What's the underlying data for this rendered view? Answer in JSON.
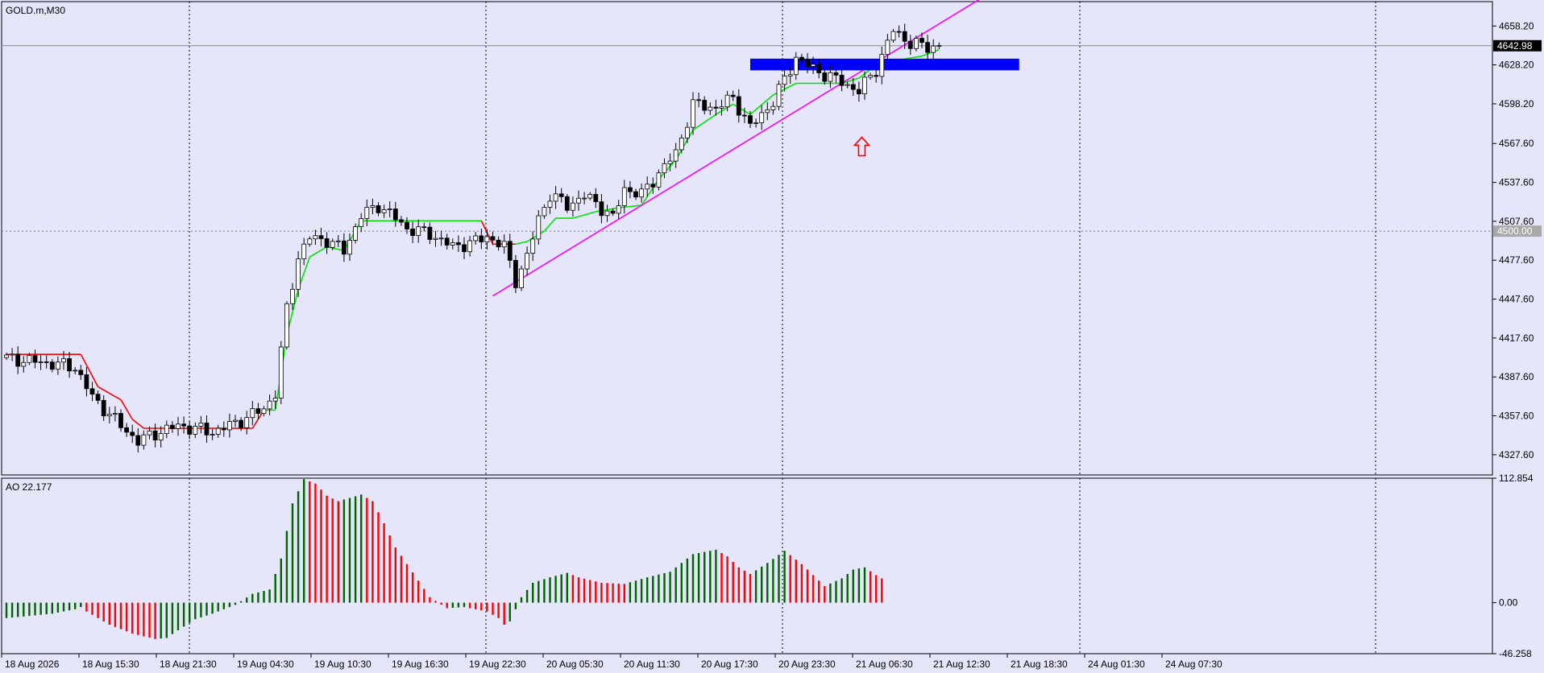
{
  "chart_data": [
    {
      "type": "candlestick",
      "title": "GOLD.m,M30",
      "ylim": [
        4312,
        4677
      ],
      "y_ticks": [
        "4658.20",
        "4628.20",
        "4598.20",
        "4567.60",
        "4537.60",
        "4507.60",
        "4477.60",
        "4447.60",
        "4417.60",
        "4387.60",
        "4357.60",
        "4327.60"
      ],
      "x_ticks": [
        "18 Aug 2026",
        "18 Aug 15:30",
        "18 Aug 21:30",
        "19 Aug 04:30",
        "19 Aug 10:30",
        "19 Aug 16:30",
        "19 Aug 22:30",
        "20 Aug 05:30",
        "20 Aug 11:30",
        "20 Aug 17:30",
        "20 Aug 23:30",
        "21 Aug 06:30",
        "21 Aug 12:30",
        "21 Aug 18:30",
        "24 Aug 01:30",
        "24 Aug 07:30"
      ],
      "current_price": "4642.98",
      "level_price": "4500.00",
      "anchors": [
        [
          0,
          4402
        ],
        [
          8,
          4398
        ],
        [
          12,
          4395
        ],
        [
          15,
          4372
        ],
        [
          20,
          4350
        ],
        [
          23,
          4338
        ],
        [
          26,
          4344
        ],
        [
          30,
          4350
        ],
        [
          34,
          4347
        ],
        [
          36,
          4345
        ],
        [
          40,
          4352
        ],
        [
          45,
          4363
        ],
        [
          47,
          4375
        ],
        [
          49,
          4440
        ],
        [
          51,
          4480
        ],
        [
          53,
          4495
        ],
        [
          56,
          4493
        ],
        [
          59,
          4485
        ],
        [
          62,
          4512
        ],
        [
          65,
          4520
        ],
        [
          68,
          4510
        ],
        [
          70,
          4502
        ],
        [
          74,
          4498
        ],
        [
          78,
          4488
        ],
        [
          82,
          4492
        ],
        [
          84,
          4496
        ],
        [
          87,
          4488
        ],
        [
          89,
          4462
        ],
        [
          91,
          4480
        ],
        [
          93,
          4510
        ],
        [
          95,
          4528
        ],
        [
          98,
          4520
        ],
        [
          101,
          4527
        ],
        [
          103,
          4522
        ],
        [
          106,
          4510
        ],
        [
          108,
          4533
        ],
        [
          111,
          4528
        ],
        [
          114,
          4545
        ],
        [
          117,
          4560
        ],
        [
          120,
          4598
        ],
        [
          124,
          4595
        ],
        [
          127,
          4603
        ],
        [
          130,
          4580
        ],
        [
          134,
          4600
        ],
        [
          138,
          4634
        ],
        [
          141,
          4625
        ],
        [
          146,
          4615
        ],
        [
          149,
          4608
        ],
        [
          152,
          4625
        ],
        [
          155,
          4655
        ],
        [
          158,
          4645
        ],
        [
          161,
          4642
        ],
        [
          163,
          4643
        ]
      ],
      "candle_colors": {
        "up": "#ffffff",
        "down": "#000000",
        "wick": "#000000"
      },
      "supertrend": {
        "up_color": "#00e600",
        "down_color": "#ff0000",
        "points": [
          [
            0,
            4405
          ],
          [
            13,
            4405
          ],
          [
            16,
            4380
          ],
          [
            20,
            4370
          ],
          [
            22,
            4355
          ],
          [
            24,
            4348
          ],
          [
            43,
            4348
          ],
          [
            45,
            4362
          ],
          [
            47,
            4362
          ],
          [
            49,
            4420
          ],
          [
            51,
            4455
          ],
          [
            53,
            4480
          ],
          [
            56,
            4488
          ],
          [
            59,
            4485
          ],
          [
            62,
            4508
          ],
          [
            64,
            4508
          ],
          [
            83,
            4508
          ],
          [
            85,
            4490
          ],
          [
            89,
            4490
          ],
          [
            91,
            4492
          ],
          [
            94,
            4500
          ],
          [
            96,
            4510
          ],
          [
            99,
            4510
          ],
          [
            103,
            4515
          ],
          [
            107,
            4518
          ],
          [
            111,
            4520
          ],
          [
            114,
            4540
          ],
          [
            117,
            4555
          ],
          [
            120,
            4578
          ],
          [
            124,
            4590
          ],
          [
            127,
            4598
          ],
          [
            130,
            4590
          ],
          [
            134,
            4605
          ],
          [
            138,
            4614
          ],
          [
            141,
            4614
          ],
          [
            146,
            4614
          ],
          [
            149,
            4618
          ],
          [
            152,
            4628
          ],
          [
            156,
            4632
          ],
          [
            160,
            4635
          ],
          [
            163,
            4640
          ]
        ]
      },
      "trendline": {
        "color": "#ff00ff",
        "from": [
          85,
          4450
        ],
        "to": [
          172,
          4684
        ]
      },
      "zone": {
        "color": "#0000ff",
        "from_index": 130,
        "to_index": 177,
        "top": 4633,
        "bottom": 4624
      },
      "arrow": {
        "color": "#ff0000",
        "index": 149.5,
        "price": 4565
      }
    },
    {
      "type": "bar",
      "title": "AO 22.177",
      "ylim": [
        -46.258,
        112.854
      ],
      "y_ticks": [
        "112.854",
        "0.00",
        "-46.258"
      ],
      "up_color": "#006400",
      "down_color": "#ff0000",
      "anchors": [
        [
          0,
          -14
        ],
        [
          4,
          -12
        ],
        [
          8,
          -10
        ],
        [
          12,
          -6
        ],
        [
          13,
          -4
        ],
        [
          14,
          -8
        ],
        [
          18,
          -20
        ],
        [
          22,
          -28
        ],
        [
          26,
          -33
        ],
        [
          28,
          -32
        ],
        [
          30,
          -25
        ],
        [
          33,
          -15
        ],
        [
          36,
          -10
        ],
        [
          40,
          -2
        ],
        [
          43,
          8
        ],
        [
          46,
          12
        ],
        [
          48,
          40
        ],
        [
          50,
          90
        ],
        [
          52,
          112
        ],
        [
          54,
          108
        ],
        [
          56,
          97
        ],
        [
          58,
          92
        ],
        [
          62,
          98
        ],
        [
          64,
          92
        ],
        [
          66,
          72
        ],
        [
          68,
          50
        ],
        [
          70,
          35
        ],
        [
          72,
          20
        ],
        [
          74,
          5
        ],
        [
          77,
          -5
        ],
        [
          80,
          -4
        ],
        [
          84,
          -8
        ],
        [
          86,
          -14
        ],
        [
          87,
          -20
        ],
        [
          88,
          -17
        ],
        [
          90,
          5
        ],
        [
          92,
          18
        ],
        [
          95,
          23
        ],
        [
          98,
          27
        ],
        [
          100,
          23
        ],
        [
          104,
          18
        ],
        [
          108,
          17
        ],
        [
          112,
          23
        ],
        [
          116,
          28
        ],
        [
          120,
          44
        ],
        [
          124,
          48
        ],
        [
          126,
          42
        ],
        [
          128,
          32
        ],
        [
          130,
          26
        ],
        [
          133,
          36
        ],
        [
          136,
          47
        ],
        [
          139,
          35
        ],
        [
          142,
          20
        ],
        [
          143,
          15
        ],
        [
          146,
          22
        ],
        [
          148,
          30
        ],
        [
          150,
          32
        ],
        [
          152,
          25
        ],
        [
          153,
          22
        ]
      ]
    }
  ]
}
